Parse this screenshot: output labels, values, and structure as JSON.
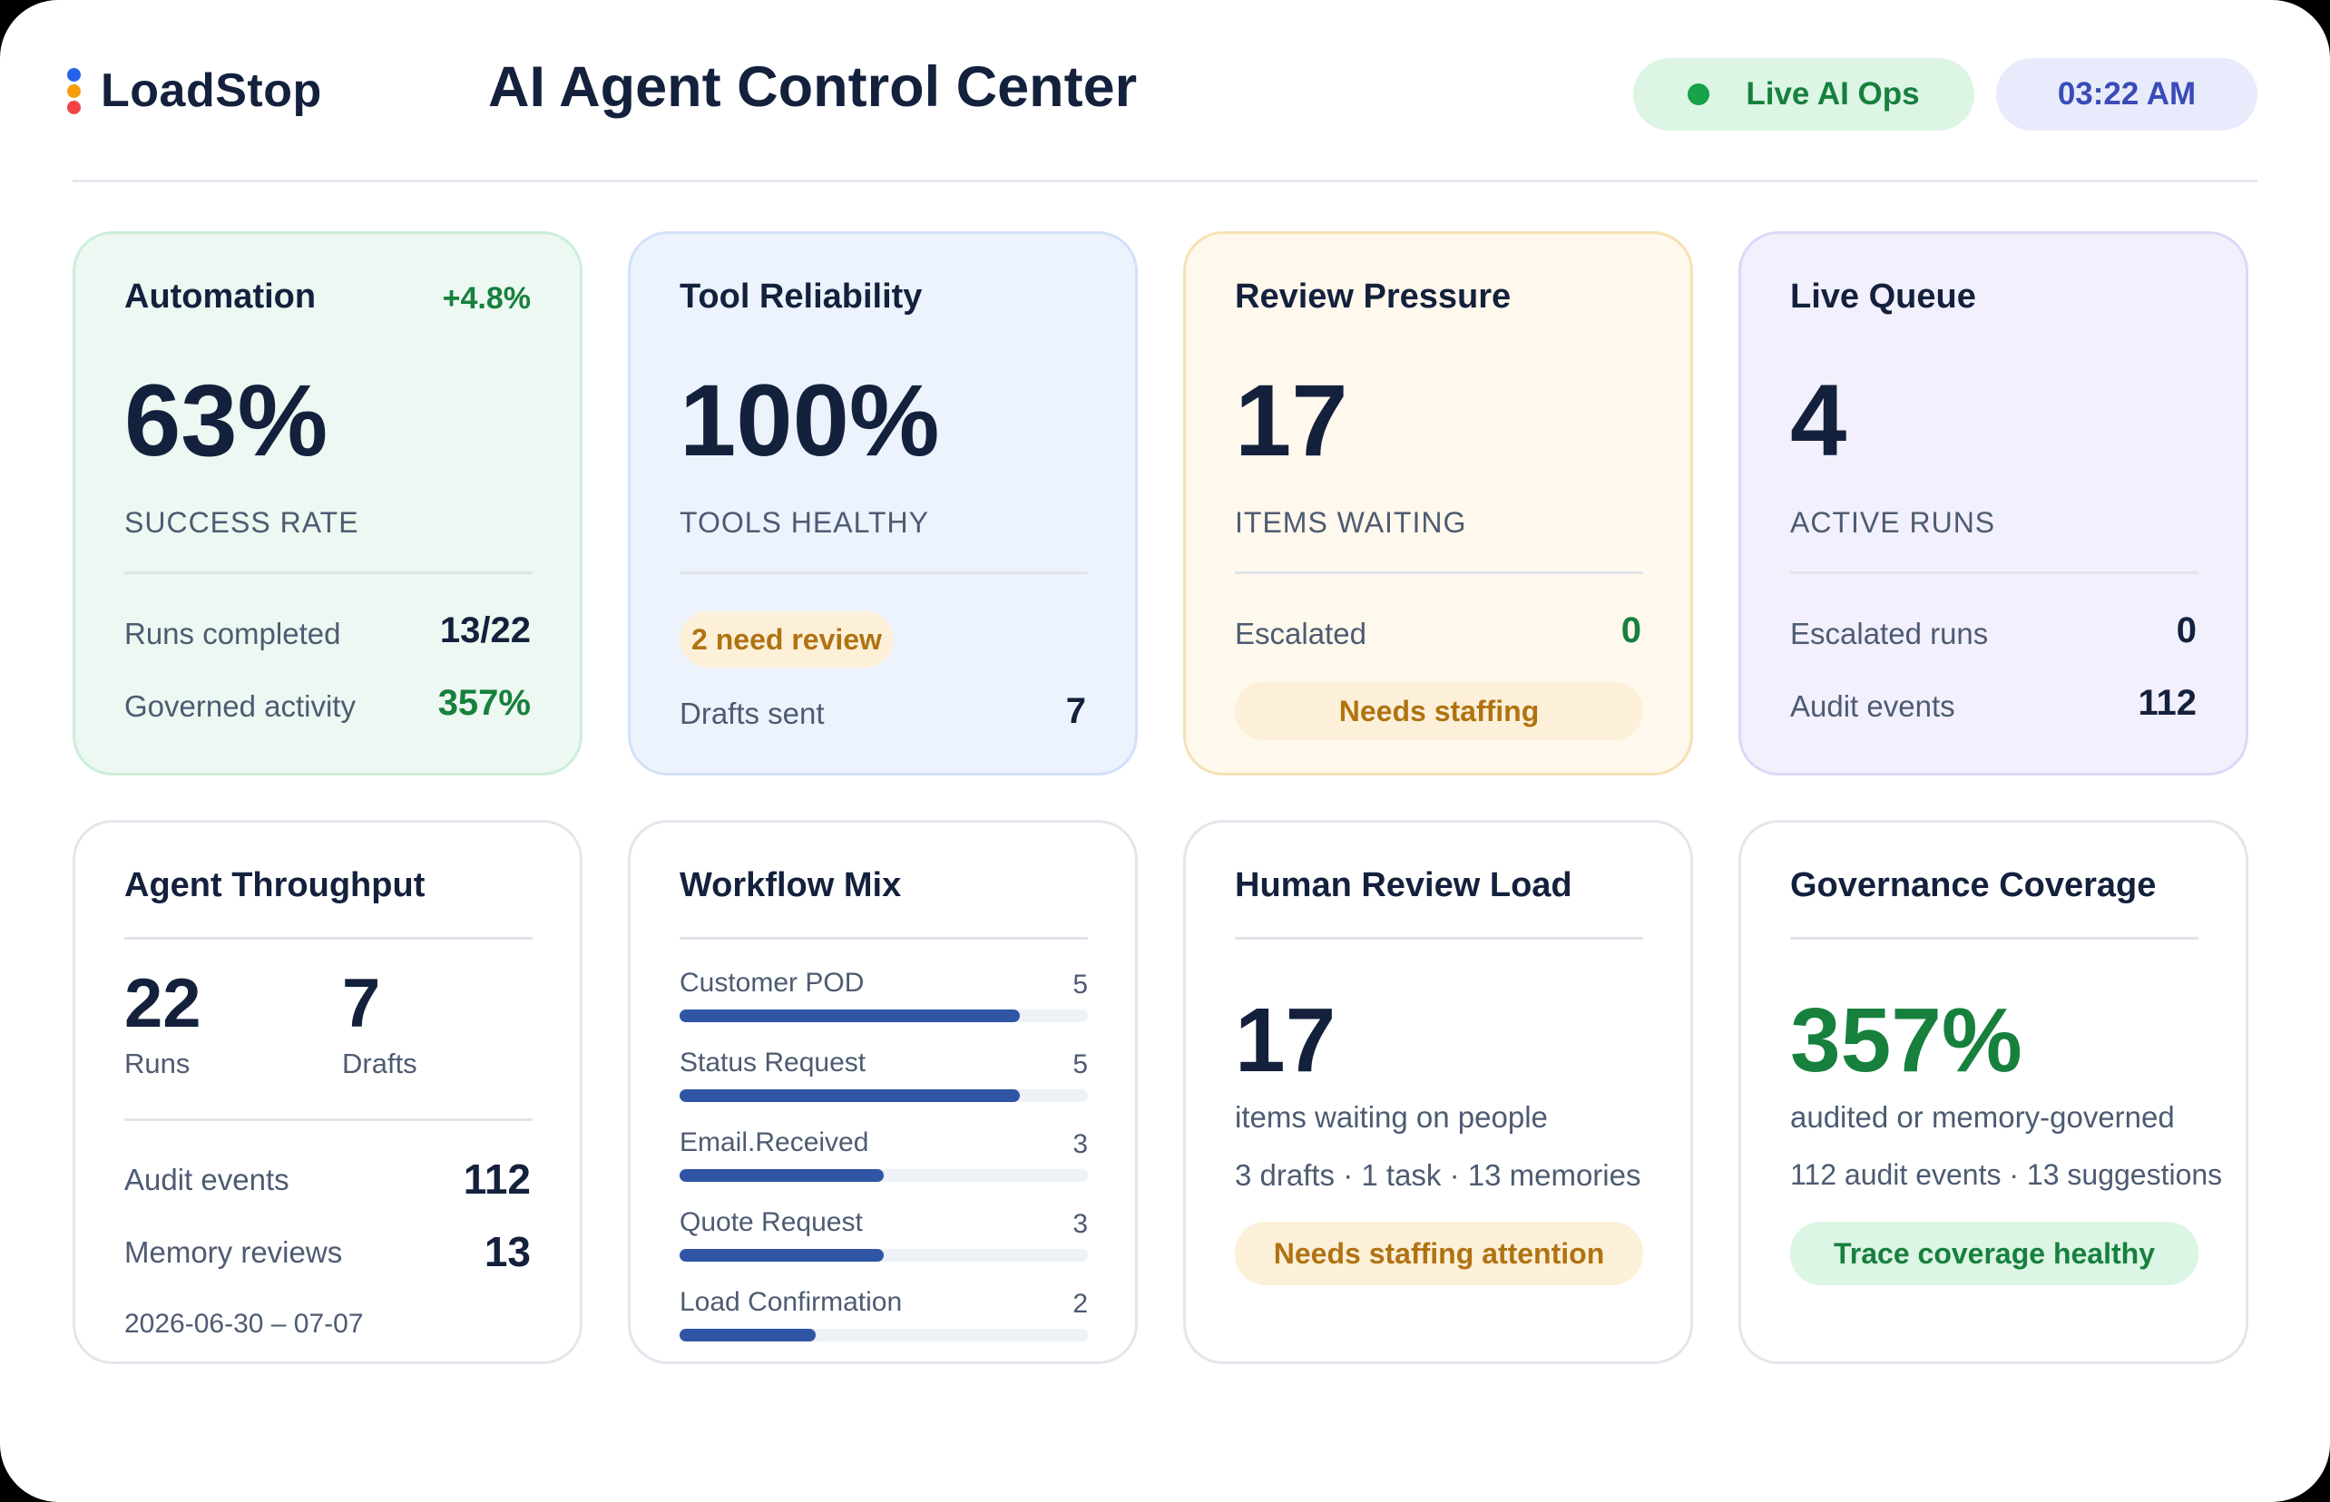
{
  "header": {
    "brand": "LoadStop",
    "title": "AI Agent Control Center",
    "status_pill": "Live AI Ops",
    "time": "03:22 AM",
    "logo_colors": [
      "#2563eb",
      "#f59e0b",
      "#ef4444"
    ]
  },
  "automation": {
    "title": "Automation",
    "delta": "+4.8%",
    "value": "63%",
    "caption": "SUCCESS RATE",
    "rows": [
      {
        "label": "Runs completed",
        "value": "13/22"
      },
      {
        "label": "Governed activity",
        "value": "357%"
      }
    ]
  },
  "tool_reliability": {
    "title": "Tool Reliability",
    "value": "100%",
    "caption": "TOOLS HEALTHY",
    "badge": "2 need review",
    "rows": [
      {
        "label": "Drafts sent",
        "value": "7"
      }
    ]
  },
  "review_pressure": {
    "title": "Review Pressure",
    "value": "17",
    "caption": "ITEMS WAITING",
    "rows": [
      {
        "label": "Escalated",
        "value": "0"
      }
    ],
    "badge": "Needs staffing"
  },
  "live_queue": {
    "title": "Live Queue",
    "value": "4",
    "caption": "ACTIVE RUNS",
    "rows": [
      {
        "label": "Escalated runs",
        "value": "0"
      },
      {
        "label": "Audit events",
        "value": "112"
      }
    ]
  },
  "throughput": {
    "title": "Agent Throughput",
    "stats": [
      {
        "value": "22",
        "label": "Runs"
      },
      {
        "value": "7",
        "label": "Drafts"
      }
    ],
    "rows": [
      {
        "label": "Audit events",
        "value": "112"
      },
      {
        "label": "Memory reviews",
        "value": "13"
      }
    ],
    "date_range": "2026-06-30 – 07-07"
  },
  "workflow_mix": {
    "title": "Workflow Mix",
    "max": 6,
    "items": [
      {
        "label": "Customer POD",
        "count": 5
      },
      {
        "label": "Status Request",
        "count": 5
      },
      {
        "label": "Email.Received",
        "count": 3
      },
      {
        "label": "Quote Request",
        "count": 3
      },
      {
        "label": "Load Confirmation",
        "count": 2
      }
    ]
  },
  "human_review": {
    "title": "Human Review Load",
    "value": "17",
    "line1": "items waiting on people",
    "line2": "3 drafts · 1 task · 13 memories",
    "badge": "Needs staffing attention"
  },
  "governance": {
    "title": "Governance Coverage",
    "value": "357%",
    "line1": "audited or memory-governed",
    "line2": "112 audit events · 13 suggestions",
    "badge": "Trace coverage healthy"
  }
}
